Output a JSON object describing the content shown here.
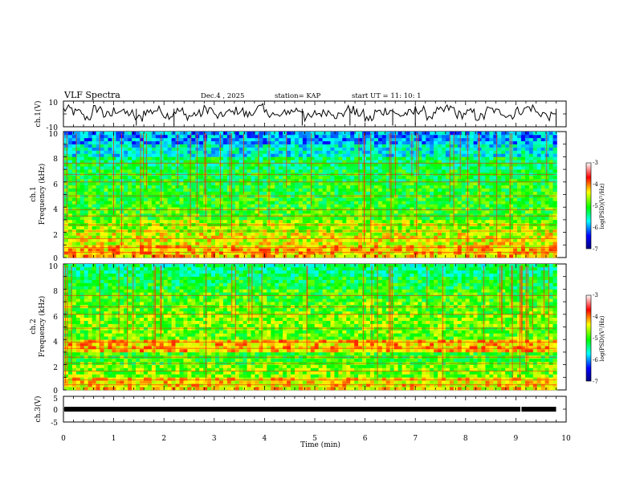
{
  "title": "VLF Spectra",
  "date": "Dec.4 , 2025",
  "station": "station= KAP",
  "start_ut": "start UT =  11: 10: 1",
  "colors": {
    "trace": "#000000",
    "colormap": [
      "#0000aa",
      "#0000ff",
      "#00ffff",
      "#00ff00",
      "#ffff00",
      "#ff0000",
      "#ffffff"
    ]
  },
  "chart_data": [
    {
      "type": "line",
      "panel": "ch1-waveform",
      "ylabel": "ch.1(V)",
      "ylim": [
        -10,
        10
      ],
      "yticks": [
        "10",
        "-10"
      ],
      "xlim": [
        0,
        9.8
      ],
      "x_step": 0.2,
      "values": [
        3.5,
        1.2,
        -2.5,
        4.0,
        -1.0,
        2.8,
        0.5,
        -3.2,
        1.8,
        3.0,
        -0.8,
        2.2,
        -1.5,
        0.0,
        3.8,
        -2.0,
        1.0,
        2.5,
        -0.5,
        4.5,
        0.8,
        -1.8,
        2.0,
        3.2,
        -2.8,
        0.5,
        1.8,
        -1.0,
        3.5,
        0.2,
        -3.8,
        1.5,
        2.8,
        -0.8,
        0.5,
        3.0,
        -1.5,
        2.0,
        4.2,
        -0.5,
        1.0,
        -2.5,
        3.0,
        1.5,
        -1.0,
        2.5,
        4.8,
        0.5,
        -2.0,
        1.8
      ]
    },
    {
      "type": "heatmap",
      "panel": "ch1-spectrogram",
      "ylabel": "ch.1\nFrequency (kHz)",
      "ylim": [
        0,
        10
      ],
      "yticks": [
        "10",
        "8",
        "6",
        "4",
        "2",
        "0"
      ],
      "colorbar": {
        "label": "log(PSD)(V²/Hz)",
        "ticks": [
          "-3",
          "-4",
          "-5",
          "-6",
          "-7"
        ],
        "range": [
          -7,
          -3
        ]
      },
      "band_levels_by_khz": [
        -4.2,
        -4.4,
        -4.6,
        -4.9,
        -5.0,
        -5.0,
        -5.1,
        -5.2,
        -5.6,
        -5.9
      ]
    },
    {
      "type": "heatmap",
      "panel": "ch2-spectrogram",
      "ylabel": "ch.2\nFrequency (kHz)",
      "ylim": [
        0,
        10
      ],
      "yticks": [
        "10",
        "8",
        "6",
        "4",
        "2",
        "0"
      ],
      "colorbar": {
        "label": "log(PSD)(V²/Hz)",
        "ticks": [
          "-3",
          "-4",
          "-5",
          "-6",
          "-7"
        ],
        "range": [
          -7,
          -3
        ]
      },
      "band_levels_by_khz": [
        -4.3,
        -4.7,
        -4.9,
        -4.2,
        -4.8,
        -4.7,
        -4.8,
        -4.9,
        -5.1,
        -5.3
      ]
    },
    {
      "type": "line",
      "panel": "ch3-trace",
      "ylabel": "ch.3(V)",
      "ylim": [
        -5,
        5
      ],
      "yticks": [
        "5",
        "0",
        "-5"
      ],
      "level": 0,
      "xlim": [
        0,
        9.8
      ]
    }
  ],
  "x_axis": {
    "label": "Time  (min)",
    "ticks": [
      "0",
      "1",
      "2",
      "3",
      "4",
      "5",
      "6",
      "7",
      "8",
      "9",
      "10"
    ],
    "range": [
      0,
      10
    ]
  }
}
